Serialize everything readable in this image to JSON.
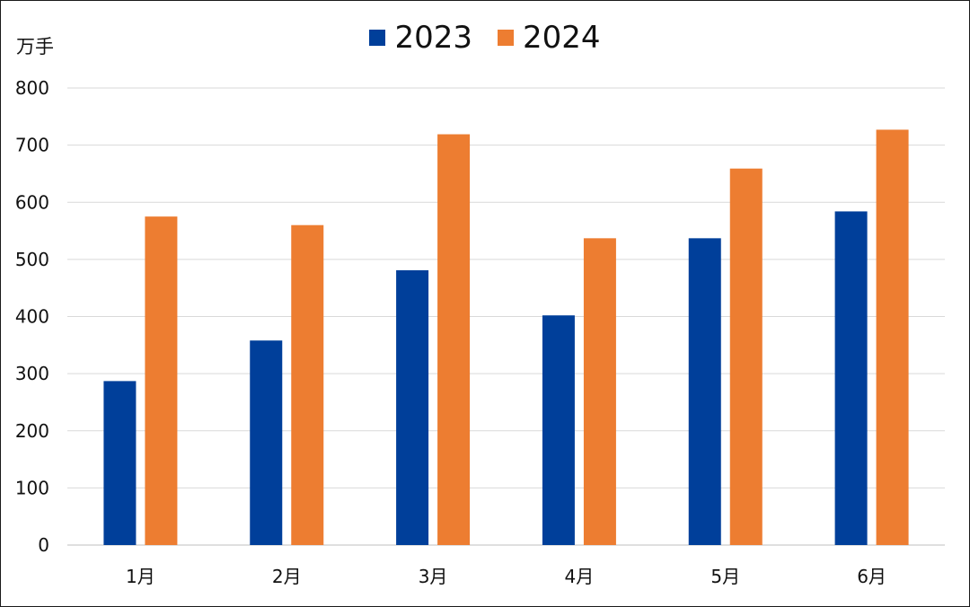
{
  "chart_data": {
    "type": "bar",
    "unit_label": "万手",
    "categories": [
      "1月",
      "2月",
      "3月",
      "4月",
      "5月",
      "6月"
    ],
    "series": [
      {
        "name": "2023",
        "color": "#003f9a",
        "values": [
          287,
          358,
          481,
          402,
          537,
          584
        ]
      },
      {
        "name": "2024",
        "color": "#ed7d31",
        "values": [
          575,
          560,
          719,
          537,
          659,
          727
        ]
      }
    ],
    "ylim": [
      0,
      800
    ],
    "yticks": [
      0,
      100,
      200,
      300,
      400,
      500,
      600,
      700,
      800
    ],
    "grid": true,
    "legend_position": "top-center"
  }
}
